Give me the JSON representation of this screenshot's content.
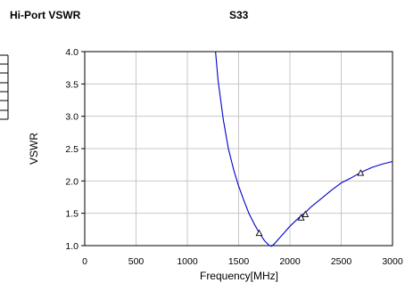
{
  "header": {
    "left_title": "Hi-Port VSWR",
    "right_title": "S33"
  },
  "chart_data": {
    "type": "line",
    "title": "S33",
    "xlabel": "Frequency[MHz]",
    "ylabel": "VSWR",
    "xlim": [
      0,
      3000
    ],
    "ylim": [
      1.0,
      4.0
    ],
    "x_ticks": [
      "0",
      "500",
      "1000",
      "1500",
      "2000",
      "2500",
      "3000"
    ],
    "y_ticks": [
      "1.0",
      "1.5",
      "2.0",
      "2.5",
      "3.0",
      "3.5",
      "4.0"
    ],
    "grid": true,
    "series": [
      {
        "color": "#0000cc",
        "x": [
          1275,
          1300,
          1350,
          1400,
          1450,
          1500,
          1550,
          1600,
          1650,
          1700,
          1750,
          1800,
          1820,
          1850,
          1900,
          1950,
          2000,
          2100,
          2150,
          2200,
          2300,
          2400,
          2500,
          2600,
          2700,
          2800,
          2900,
          3000
        ],
        "y": [
          4.0,
          3.55,
          2.95,
          2.5,
          2.18,
          1.92,
          1.7,
          1.5,
          1.34,
          1.2,
          1.08,
          1.0,
          0.99,
          1.03,
          1.12,
          1.21,
          1.3,
          1.45,
          1.51,
          1.59,
          1.72,
          1.85,
          1.97,
          2.05,
          2.14,
          2.21,
          2.26,
          2.3
        ]
      }
    ],
    "markers": [
      {
        "x": 1700,
        "y": 1.19
      },
      {
        "x": 2110,
        "y": 1.43
      },
      {
        "x": 2150,
        "y": 1.48
      },
      {
        "x": 2690,
        "y": 2.12
      }
    ]
  }
}
